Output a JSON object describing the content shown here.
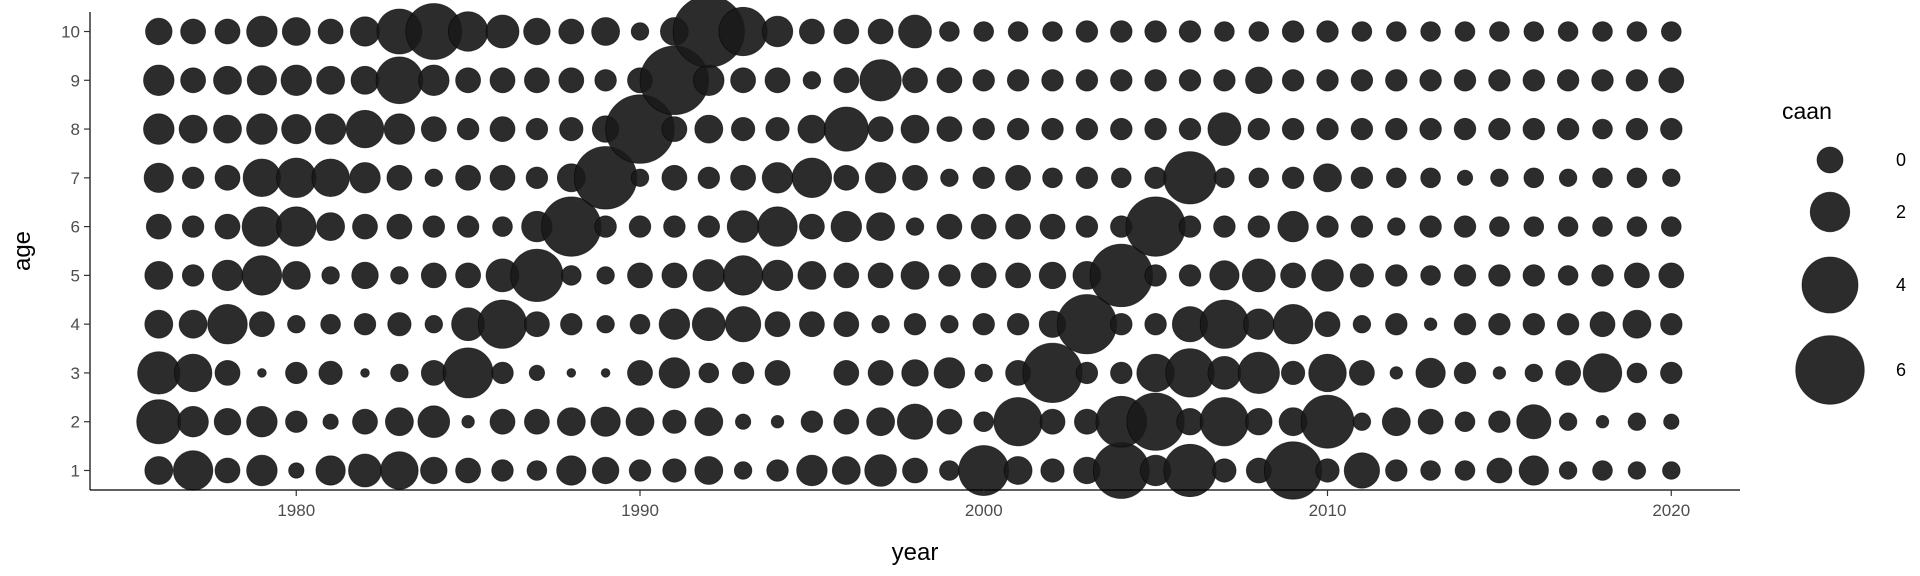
{
  "chart_data": {
    "type": "scatter",
    "title": "",
    "xlabel": "year",
    "ylabel": "age",
    "xlim": [
      1974,
      2022
    ],
    "ylim": [
      0.6,
      10.4
    ],
    "x_ticks": [
      1980,
      1990,
      2000,
      2010,
      2020
    ],
    "y_ticks": [
      1,
      2,
      3,
      4,
      5,
      6,
      7,
      8,
      9,
      10
    ],
    "size_variable": "caan",
    "size_range": [
      0,
      7
    ],
    "legend": {
      "title": "caan",
      "values": [
        0,
        2,
        4,
        6
      ],
      "placement": "right"
    },
    "grid": false,
    "point_color": "#1a1a1a",
    "years": [
      1976,
      1977,
      1978,
      1979,
      1980,
      1981,
      1982,
      1983,
      1984,
      1985,
      1986,
      1987,
      1988,
      1989,
      1990,
      1991,
      1992,
      1993,
      1994,
      1995,
      1996,
      1997,
      1998,
      1999,
      2000,
      2001,
      2002,
      2003,
      2004,
      2005,
      2006,
      2007,
      2008,
      2009,
      2010,
      2011,
      2012,
      2013,
      2014,
      2015,
      2016,
      2017,
      2018,
      2019,
      2020
    ],
    "ages": [
      1,
      2,
      3,
      4,
      5,
      6,
      7,
      8,
      9,
      10
    ],
    "caan_by_age": [
      [
        1.0,
        2.0,
        0.8,
        1.2,
        0.3,
        1.1,
        1.4,
        1.8,
        0.9,
        0.8,
        0.6,
        0.5,
        1.1,
        0.9,
        0.6,
        0.7,
        1.0,
        0.4,
        0.6,
        1.2,
        1.0,
        1.3,
        0.8,
        0.5,
        3.2,
        1.0,
        0.7,
        0.9,
        4.0,
        1.2,
        3.5,
        0.7,
        0.8,
        4.2,
        0.7,
        1.6,
        0.6,
        0.5,
        0.5,
        0.8,
        1.1,
        0.4,
        0.5,
        0.4,
        0.4
      ],
      [
        2.5,
        1.2,
        0.9,
        1.2,
        0.6,
        0.3,
        0.8,
        1.0,
        1.3,
        0.2,
        0.8,
        0.8,
        1.0,
        1.1,
        1.0,
        0.7,
        1.0,
        0.3,
        0.2,
        0.6,
        0.8,
        1.0,
        1.6,
        0.8,
        0.5,
        3.0,
        0.8,
        0.8,
        3.3,
        4.2,
        0.9,
        3.0,
        0.9,
        1.0,
        3.6,
        0.4,
        1.0,
        0.8,
        0.5,
        0.6,
        1.5,
        0.4,
        0.2,
        0.4,
        0.3
      ],
      [
        2.3,
        1.8,
        0.8,
        0.1,
        0.6,
        0.7,
        0.1,
        0.4,
        0.8,
        3.2,
        0.6,
        0.3,
        0.1,
        0.1,
        0.8,
        1.2,
        0.5,
        0.6,
        0.8,
        0.0,
        0.8,
        0.8,
        0.9,
        1.2,
        0.4,
        0.8,
        4.5,
        0.6,
        0.6,
        1.8,
        3.0,
        1.4,
        2.2,
        0.7,
        1.8,
        0.8,
        0.2,
        1.1,
        0.6,
        0.2,
        0.4,
        0.8,
        1.9,
        0.5,
        0.6
      ],
      [
        1.0,
        1.0,
        2.0,
        0.8,
        0.4,
        0.5,
        0.6,
        0.7,
        0.4,
        1.4,
        3.0,
        0.8,
        0.6,
        0.4,
        0.5,
        1.2,
        1.4,
        1.6,
        0.8,
        0.8,
        0.8,
        0.4,
        0.6,
        0.4,
        0.6,
        0.6,
        0.9,
        4.5,
        0.6,
        0.6,
        1.6,
        3.0,
        1.2,
        2.0,
        0.8,
        0.4,
        0.6,
        0.2,
        0.6,
        0.6,
        0.6,
        0.6,
        0.8,
        1.0,
        0.6
      ],
      [
        1.0,
        0.6,
        1.2,
        2.0,
        1.0,
        0.4,
        0.9,
        0.4,
        0.8,
        0.8,
        1.4,
        3.5,
        0.5,
        0.4,
        0.8,
        0.8,
        1.3,
        2.0,
        1.2,
        1.0,
        0.8,
        0.8,
        1.0,
        0.6,
        0.8,
        0.8,
        0.9,
        1.0,
        5.0,
        0.6,
        0.6,
        1.1,
        1.4,
        0.8,
        1.3,
        0.7,
        0.6,
        0.5,
        0.6,
        0.6,
        0.6,
        0.5,
        0.6,
        0.8,
        0.8
      ],
      [
        0.8,
        0.6,
        0.8,
        2.0,
        2.0,
        1.0,
        0.8,
        0.8,
        0.6,
        0.6,
        0.5,
        1.2,
        4.5,
        0.6,
        0.6,
        0.6,
        0.6,
        1.3,
        2.0,
        0.8,
        1.2,
        1.0,
        0.4,
        0.8,
        0.8,
        0.8,
        0.8,
        0.6,
        0.6,
        4.5,
        0.6,
        0.6,
        0.6,
        1.2,
        0.6,
        0.6,
        0.4,
        0.6,
        0.6,
        0.5,
        0.5,
        0.5,
        0.5,
        0.5,
        0.5
      ],
      [
        1.1,
        0.6,
        0.8,
        1.8,
        2.0,
        1.8,
        1.2,
        0.8,
        0.4,
        0.8,
        0.8,
        0.6,
        1.0,
        5.0,
        0.4,
        0.8,
        0.6,
        0.8,
        1.2,
        2.0,
        0.8,
        1.2,
        0.8,
        0.4,
        0.6,
        0.8,
        0.5,
        0.6,
        0.5,
        0.6,
        3.5,
        0.5,
        0.5,
        0.6,
        1.0,
        0.6,
        0.5,
        0.5,
        0.3,
        0.4,
        0.5,
        0.4,
        0.5,
        0.5,
        0.4
      ],
      [
        1.2,
        1.0,
        1.0,
        1.2,
        1.1,
        1.2,
        1.8,
        1.2,
        0.8,
        0.6,
        0.8,
        0.6,
        0.7,
        0.9,
        6.0,
        0.8,
        1.0,
        0.7,
        0.7,
        1.0,
        2.5,
        0.8,
        1.0,
        0.8,
        0.6,
        0.6,
        0.6,
        0.6,
        0.6,
        0.6,
        0.6,
        1.4,
        0.6,
        0.6,
        0.6,
        0.6,
        0.6,
        0.6,
        0.6,
        0.6,
        0.6,
        0.6,
        0.5,
        0.6,
        0.6
      ],
      [
        1.2,
        0.8,
        1.0,
        1.1,
        1.2,
        1.0,
        1.0,
        2.8,
        1.2,
        0.8,
        0.8,
        0.8,
        0.8,
        0.6,
        0.8,
        6.0,
        1.2,
        0.8,
        0.8,
        0.4,
        0.8,
        2.2,
        0.8,
        0.8,
        0.6,
        0.6,
        0.6,
        0.6,
        0.6,
        0.6,
        0.6,
        0.6,
        0.9,
        0.6,
        0.6,
        0.6,
        0.6,
        0.6,
        0.6,
        0.6,
        0.6,
        0.6,
        0.6,
        0.6,
        0.8
      ],
      [
        0.9,
        0.8,
        0.8,
        1.2,
        1.0,
        0.8,
        1.1,
        2.6,
        4.0,
        2.0,
        1.4,
        0.9,
        0.8,
        1.0,
        0.4,
        1.0,
        6.5,
        3.0,
        1.2,
        0.8,
        0.8,
        0.8,
        1.4,
        0.5,
        0.5,
        0.5,
        0.5,
        0.6,
        0.6,
        0.6,
        0.6,
        0.5,
        0.5,
        0.6,
        0.6,
        0.5,
        0.5,
        0.5,
        0.5,
        0.5,
        0.5,
        0.5,
        0.5,
        0.5,
        0.5
      ]
    ]
  }
}
